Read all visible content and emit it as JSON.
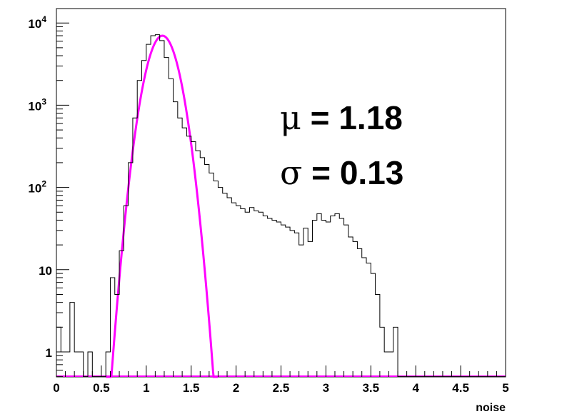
{
  "chart_data": {
    "type": "histogram",
    "title": "",
    "xlabel": "noise",
    "ylabel": "",
    "xlim": [
      0,
      5
    ],
    "ylim": [
      0.5,
      12000
    ],
    "yscale": "log",
    "grid": false,
    "x_ticks": [
      {
        "value": 0,
        "label": "0"
      },
      {
        "value": 0.5,
        "label": "0.5"
      },
      {
        "value": 1,
        "label": "1"
      },
      {
        "value": 1.5,
        "label": "1.5"
      },
      {
        "value": 2,
        "label": "2"
      },
      {
        "value": 2.5,
        "label": "2.5"
      },
      {
        "value": 3,
        "label": "3"
      },
      {
        "value": 3.5,
        "label": "3.5"
      },
      {
        "value": 4,
        "label": "4"
      },
      {
        "value": 4.5,
        "label": "4.5"
      },
      {
        "value": 5,
        "label": "5"
      }
    ],
    "y_ticks": [
      {
        "value": 1,
        "base": "1",
        "exp": ""
      },
      {
        "value": 10,
        "base": "10",
        "exp": ""
      },
      {
        "value": 100,
        "base": "10",
        "exp": "2"
      },
      {
        "value": 1000,
        "base": "10",
        "exp": "3"
      },
      {
        "value": 10000,
        "base": "10",
        "exp": "4"
      }
    ],
    "series": [
      {
        "kind": "histogram",
        "color": "#000000",
        "bin_width": 0.05,
        "bin_start": 0,
        "values": [
          2,
          1,
          1,
          4,
          1,
          1,
          0.5,
          1,
          0.5,
          0.5,
          0.5,
          1,
          8,
          5,
          17,
          60,
          200,
          700,
          2000,
          3500,
          5500,
          7000,
          7200,
          6100,
          3800,
          2100,
          1100,
          700,
          530,
          420,
          360,
          280,
          230,
          190,
          150,
          120,
          100,
          85,
          75,
          65,
          60,
          55,
          50,
          57,
          52,
          50,
          45,
          42,
          40,
          38,
          35,
          33,
          30,
          28,
          20,
          32,
          22,
          40,
          48,
          40,
          38,
          45,
          48,
          42,
          35,
          25,
          22,
          18,
          14,
          12,
          9,
          5,
          2,
          1,
          1,
          2,
          0.5,
          0.5,
          0.5,
          0.5,
          0.5,
          0.5,
          0.5,
          0.5,
          0.5,
          0.5,
          0.5,
          0.5,
          0.5,
          0.5,
          0.5,
          0.5,
          0.5,
          0.5,
          0.5,
          0.5,
          0.5,
          0.5,
          0.5,
          0.5
        ]
      },
      {
        "kind": "gaussian_fit",
        "color": "#ff00ff",
        "amplitude": 7000,
        "mean": 1.18,
        "sigma": 0.13,
        "range": [
          0.55,
          1.8
        ]
      }
    ],
    "annotations": [
      {
        "symbol": "μ",
        "text": " = 1.18"
      },
      {
        "symbol": "σ",
        "text": " = 0.13"
      }
    ]
  }
}
